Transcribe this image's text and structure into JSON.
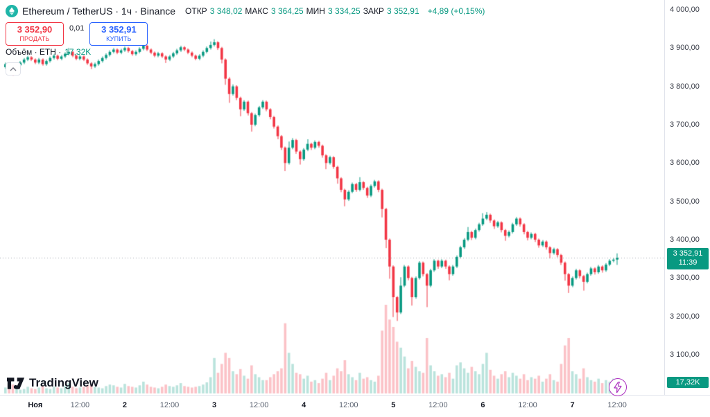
{
  "ui": {
    "symbol_title": "Ethereum / TetherUS · 1ч · Binance",
    "ohlc": {
      "open_label": "ОТКР",
      "open": "3 348,02",
      "high_label": "МАКС",
      "high": "3 364,25",
      "low_label": "МИН",
      "low": "3 334,25",
      "close_label": "ЗАКР",
      "close": "3 352,91",
      "change": "+4,89 (+0,15%)"
    },
    "trade": {
      "sell_price": "3 352,90",
      "sell_label": "ПРОДАТЬ",
      "spread": "0,01",
      "buy_price": "3 352,91",
      "buy_label": "КУПИТЬ"
    },
    "volume_legend": {
      "label": "Объём · ETH ·",
      "value": "17,32K"
    },
    "collapse_glyph": "⌃",
    "logo_text": "TradingView",
    "badges": {
      "last_price": "3 352,91",
      "countdown": "11:39",
      "volume": "17,32K"
    }
  },
  "colors": {
    "up": "#089981",
    "down": "#F23645",
    "vol_up": "rgba(8,153,129,0.28)",
    "vol_down": "rgba(242,54,69,0.30)",
    "buy": "#2962FF",
    "sell": "#F23645",
    "badge": "#089981",
    "last_price_line": "#9aa0aa",
    "symbol_circle": "#1fb5a8",
    "lightning": "#ab2fbf"
  },
  "chart_data": {
    "type": "candlestick",
    "symbol": "ETHUSDT",
    "exchange": "Binance",
    "interval": "1ч",
    "current_bar": {
      "open": 3348.02,
      "high": 3364.25,
      "low": 3334.25,
      "close": 3352.91,
      "change_pct": 0.15,
      "change_abs": 4.89
    },
    "last_close": 3352.91,
    "price_axis": {
      "max": 4000,
      "min": 3100,
      "ticks": [
        {
          "label": "4 000,00",
          "price": 4000
        },
        {
          "label": "3 900,00",
          "price": 3900
        },
        {
          "label": "3 800,00",
          "price": 3800
        },
        {
          "label": "3 700,00",
          "price": 3700
        },
        {
          "label": "3 600,00",
          "price": 3600
        },
        {
          "label": "3 500,00",
          "price": 3500
        },
        {
          "label": "3 400,00",
          "price": 3400
        },
        {
          "label": "3 300,00",
          "price": 3300
        },
        {
          "label": "3 200,00",
          "price": 3200
        },
        {
          "label": "3 100,00",
          "price": 3100
        }
      ]
    },
    "time_axis": {
      "ticks": [
        {
          "i": 8,
          "label": "Ноя",
          "major": true
        },
        {
          "i": 20,
          "label": "12:00",
          "major": false
        },
        {
          "i": 32,
          "label": "2",
          "major": true
        },
        {
          "i": 44,
          "label": "12:00",
          "major": false
        },
        {
          "i": 56,
          "label": "3",
          "major": true
        },
        {
          "i": 68,
          "label": "12:00",
          "major": false
        },
        {
          "i": 80,
          "label": "4",
          "major": true
        },
        {
          "i": 92,
          "label": "12:00",
          "major": false
        },
        {
          "i": 104,
          "label": "5",
          "major": true
        },
        {
          "i": 116,
          "label": "12:00",
          "major": false
        },
        {
          "i": 128,
          "label": "6",
          "major": true
        },
        {
          "i": 140,
          "label": "12:00",
          "major": false
        },
        {
          "i": 152,
          "label": "7",
          "major": true
        },
        {
          "i": 164,
          "label": "12:00",
          "major": false
        }
      ]
    },
    "candles": [
      [
        3850,
        3862,
        3846,
        3858
      ],
      [
        3858,
        3861,
        3848,
        3852
      ],
      [
        3852,
        3855,
        3828,
        3838
      ],
      [
        3838,
        3858,
        3834,
        3855
      ],
      [
        3855,
        3866,
        3851,
        3862
      ],
      [
        3862,
        3874,
        3858,
        3870
      ],
      [
        3870,
        3880,
        3866,
        3876
      ],
      [
        3876,
        3879,
        3866,
        3870
      ],
      [
        3870,
        3873,
        3858,
        3862
      ],
      [
        3862,
        3874,
        3858,
        3870
      ],
      [
        3870,
        3873,
        3854,
        3858
      ],
      [
        3858,
        3870,
        3854,
        3866
      ],
      [
        3866,
        3878,
        3862,
        3874
      ],
      [
        3874,
        3884,
        3870,
        3880
      ],
      [
        3880,
        3883,
        3868,
        3872
      ],
      [
        3872,
        3882,
        3868,
        3878
      ],
      [
        3878,
        3889,
        3874,
        3885
      ],
      [
        3885,
        3900,
        3881,
        3890
      ],
      [
        3890,
        3893,
        3876,
        3880
      ],
      [
        3880,
        3883,
        3868,
        3872
      ],
      [
        3872,
        3882,
        3868,
        3878
      ],
      [
        3878,
        3881,
        3866,
        3870
      ],
      [
        3870,
        3873,
        3856,
        3860
      ],
      [
        3860,
        3863,
        3845,
        3852
      ],
      [
        3852,
        3862,
        3848,
        3858
      ],
      [
        3858,
        3870,
        3854,
        3866
      ],
      [
        3866,
        3878,
        3862,
        3874
      ],
      [
        3874,
        3886,
        3870,
        3882
      ],
      [
        3882,
        3894,
        3878,
        3890
      ],
      [
        3890,
        3900,
        3886,
        3896
      ],
      [
        3896,
        3899,
        3884,
        3888
      ],
      [
        3888,
        3898,
        3884,
        3894
      ],
      [
        3894,
        3904,
        3890,
        3900
      ],
      [
        3900,
        3903,
        3888,
        3892
      ],
      [
        3892,
        3895,
        3880,
        3884
      ],
      [
        3884,
        3894,
        3880,
        3890
      ],
      [
        3890,
        3902,
        3886,
        3898
      ],
      [
        3898,
        3913,
        3894,
        3906
      ],
      [
        3906,
        3909,
        3892,
        3896
      ],
      [
        3896,
        3899,
        3884,
        3888
      ],
      [
        3888,
        3891,
        3876,
        3880
      ],
      [
        3880,
        3890,
        3876,
        3886
      ],
      [
        3886,
        3889,
        3874,
        3878
      ],
      [
        3878,
        3881,
        3861,
        3870
      ],
      [
        3870,
        3882,
        3866,
        3878
      ],
      [
        3878,
        3890,
        3874,
        3886
      ],
      [
        3886,
        3898,
        3882,
        3894
      ],
      [
        3894,
        3906,
        3890,
        3902
      ],
      [
        3902,
        3905,
        3892,
        3896
      ],
      [
        3896,
        3899,
        3884,
        3888
      ],
      [
        3888,
        3891,
        3876,
        3880
      ],
      [
        3880,
        3883,
        3868,
        3872
      ],
      [
        3872,
        3884,
        3868,
        3880
      ],
      [
        3880,
        3894,
        3876,
        3890
      ],
      [
        3890,
        3904,
        3886,
        3900
      ],
      [
        3900,
        3917,
        3896,
        3908
      ],
      [
        3908,
        3923,
        3904,
        3915
      ],
      [
        3915,
        3918,
        3895,
        3900
      ],
      [
        3900,
        3903,
        3860,
        3870
      ],
      [
        3870,
        3873,
        3804,
        3820
      ],
      [
        3820,
        3824,
        3757,
        3780
      ],
      [
        3780,
        3805,
        3776,
        3800
      ],
      [
        3800,
        3803,
        3764,
        3770
      ],
      [
        3770,
        3773,
        3722,
        3740
      ],
      [
        3740,
        3764,
        3736,
        3760
      ],
      [
        3760,
        3763,
        3724,
        3730
      ],
      [
        3730,
        3733,
        3682,
        3700
      ],
      [
        3700,
        3729,
        3696,
        3725
      ],
      [
        3725,
        3749,
        3721,
        3745
      ],
      [
        3745,
        3764,
        3741,
        3760
      ],
      [
        3760,
        3763,
        3735,
        3740
      ],
      [
        3740,
        3743,
        3714,
        3720
      ],
      [
        3720,
        3723,
        3690,
        3695
      ],
      [
        3695,
        3698,
        3662,
        3670
      ],
      [
        3670,
        3673,
        3634,
        3640
      ],
      [
        3640,
        3643,
        3579,
        3600
      ],
      [
        3600,
        3656,
        3596,
        3640
      ],
      [
        3640,
        3665,
        3636,
        3660
      ],
      [
        3660,
        3663,
        3624,
        3630
      ],
      [
        3630,
        3633,
        3596,
        3610
      ],
      [
        3610,
        3639,
        3606,
        3635
      ],
      [
        3635,
        3662,
        3631,
        3650
      ],
      [
        3650,
        3653,
        3634,
        3640
      ],
      [
        3640,
        3659,
        3636,
        3655
      ],
      [
        3655,
        3658,
        3640,
        3645
      ],
      [
        3645,
        3648,
        3614,
        3620
      ],
      [
        3620,
        3623,
        3584,
        3600
      ],
      [
        3600,
        3619,
        3596,
        3615
      ],
      [
        3615,
        3618,
        3585,
        3590
      ],
      [
        3590,
        3593,
        3546,
        3560
      ],
      [
        3560,
        3563,
        3524,
        3530
      ],
      [
        3530,
        3533,
        3487,
        3505
      ],
      [
        3505,
        3529,
        3501,
        3525
      ],
      [
        3525,
        3549,
        3521,
        3545
      ],
      [
        3545,
        3548,
        3525,
        3530
      ],
      [
        3530,
        3563,
        3526,
        3550
      ],
      [
        3550,
        3553,
        3530,
        3535
      ],
      [
        3535,
        3538,
        3509,
        3515
      ],
      [
        3515,
        3544,
        3511,
        3540
      ],
      [
        3540,
        3556,
        3536,
        3552
      ],
      [
        3552,
        3555,
        3524,
        3530
      ],
      [
        3530,
        3533,
        3458,
        3480
      ],
      [
        3480,
        3483,
        3378,
        3400
      ],
      [
        3400,
        3403,
        3298,
        3330
      ],
      [
        3330,
        3333,
        3198,
        3250
      ],
      [
        3250,
        3253,
        3188,
        3210
      ],
      [
        3210,
        3302,
        3206,
        3280
      ],
      [
        3280,
        3334,
        3276,
        3330
      ],
      [
        3330,
        3333,
        3294,
        3300
      ],
      [
        3300,
        3303,
        3228,
        3250
      ],
      [
        3250,
        3304,
        3246,
        3300
      ],
      [
        3300,
        3344,
        3296,
        3340
      ],
      [
        3340,
        3343,
        3304,
        3310
      ],
      [
        3310,
        3313,
        3224,
        3280
      ],
      [
        3280,
        3324,
        3276,
        3320
      ],
      [
        3320,
        3349,
        3316,
        3345
      ],
      [
        3345,
        3348,
        3324,
        3330
      ],
      [
        3330,
        3349,
        3326,
        3345
      ],
      [
        3345,
        3348,
        3324,
        3330
      ],
      [
        3330,
        3333,
        3294,
        3310
      ],
      [
        3310,
        3334,
        3306,
        3330
      ],
      [
        3330,
        3359,
        3326,
        3355
      ],
      [
        3355,
        3384,
        3351,
        3380
      ],
      [
        3380,
        3404,
        3376,
        3400
      ],
      [
        3400,
        3433,
        3396,
        3420
      ],
      [
        3420,
        3423,
        3399,
        3405
      ],
      [
        3405,
        3429,
        3401,
        3425
      ],
      [
        3425,
        3444,
        3421,
        3440
      ],
      [
        3440,
        3469,
        3436,
        3455
      ],
      [
        3455,
        3472,
        3451,
        3465
      ],
      [
        3465,
        3468,
        3444,
        3450
      ],
      [
        3450,
        3453,
        3428,
        3435
      ],
      [
        3435,
        3449,
        3431,
        3445
      ],
      [
        3445,
        3448,
        3419,
        3425
      ],
      [
        3425,
        3428,
        3397,
        3410
      ],
      [
        3410,
        3424,
        3406,
        3420
      ],
      [
        3420,
        3444,
        3416,
        3440
      ],
      [
        3440,
        3459,
        3436,
        3455
      ],
      [
        3455,
        3458,
        3434,
        3440
      ],
      [
        3440,
        3443,
        3414,
        3420
      ],
      [
        3420,
        3423,
        3398,
        3405
      ],
      [
        3405,
        3419,
        3401,
        3415
      ],
      [
        3415,
        3418,
        3394,
        3400
      ],
      [
        3400,
        3403,
        3379,
        3385
      ],
      [
        3385,
        3399,
        3381,
        3395
      ],
      [
        3395,
        3398,
        3374,
        3380
      ],
      [
        3380,
        3383,
        3351,
        3365
      ],
      [
        3365,
        3379,
        3361,
        3375
      ],
      [
        3375,
        3378,
        3354,
        3360
      ],
      [
        3360,
        3363,
        3334,
        3340
      ],
      [
        3340,
        3343,
        3293,
        3310
      ],
      [
        3310,
        3313,
        3261,
        3280
      ],
      [
        3280,
        3304,
        3276,
        3300
      ],
      [
        3300,
        3324,
        3296,
        3320
      ],
      [
        3320,
        3323,
        3299,
        3305
      ],
      [
        3305,
        3308,
        3267,
        3290
      ],
      [
        3290,
        3314,
        3286,
        3310
      ],
      [
        3310,
        3329,
        3306,
        3325
      ],
      [
        3325,
        3328,
        3309,
        3315
      ],
      [
        3315,
        3334,
        3311,
        3330
      ],
      [
        3330,
        3333,
        3314,
        3320
      ],
      [
        3320,
        3339,
        3316,
        3335
      ],
      [
        3335,
        3349,
        3331,
        3345
      ],
      [
        3345,
        3352,
        3341,
        3348
      ],
      [
        3348.02,
        3364.25,
        3334.25,
        3352.91
      ]
    ],
    "volumes": [
      8,
      6,
      12,
      7,
      5,
      6,
      9,
      7,
      6,
      8,
      10,
      7,
      6,
      9,
      8,
      7,
      10,
      14,
      9,
      7,
      8,
      9,
      11,
      12,
      9,
      8,
      7,
      10,
      12,
      11,
      9,
      8,
      13,
      10,
      9,
      8,
      11,
      16,
      12,
      9,
      8,
      7,
      9,
      12,
      10,
      9,
      11,
      14,
      10,
      9,
      8,
      9,
      10,
      12,
      15,
      22,
      48,
      28,
      40,
      55,
      48,
      30,
      26,
      33,
      24,
      20,
      38,
      26,
      22,
      18,
      18,
      22,
      26,
      30,
      34,
      95,
      55,
      40,
      28,
      26,
      20,
      24,
      16,
      18,
      14,
      20,
      28,
      18,
      24,
      34,
      30,
      45,
      26,
      22,
      18,
      28,
      20,
      22,
      18,
      16,
      24,
      85,
      120,
      100,
      90,
      70,
      62,
      50,
      34,
      44,
      36,
      30,
      28,
      75,
      38,
      30,
      24,
      26,
      22,
      28,
      20,
      38,
      42,
      34,
      28,
      36,
      30,
      26,
      40,
      55,
      32,
      24,
      20,
      26,
      30,
      22,
      28,
      24,
      20,
      26,
      18,
      22,
      20,
      24,
      16,
      20,
      26,
      18,
      16,
      40,
      65,
      75,
      30,
      26,
      20,
      34,
      22,
      18,
      16,
      20,
      14,
      18,
      16,
      20,
      17.32
    ],
    "current_volume": "17,32K"
  }
}
